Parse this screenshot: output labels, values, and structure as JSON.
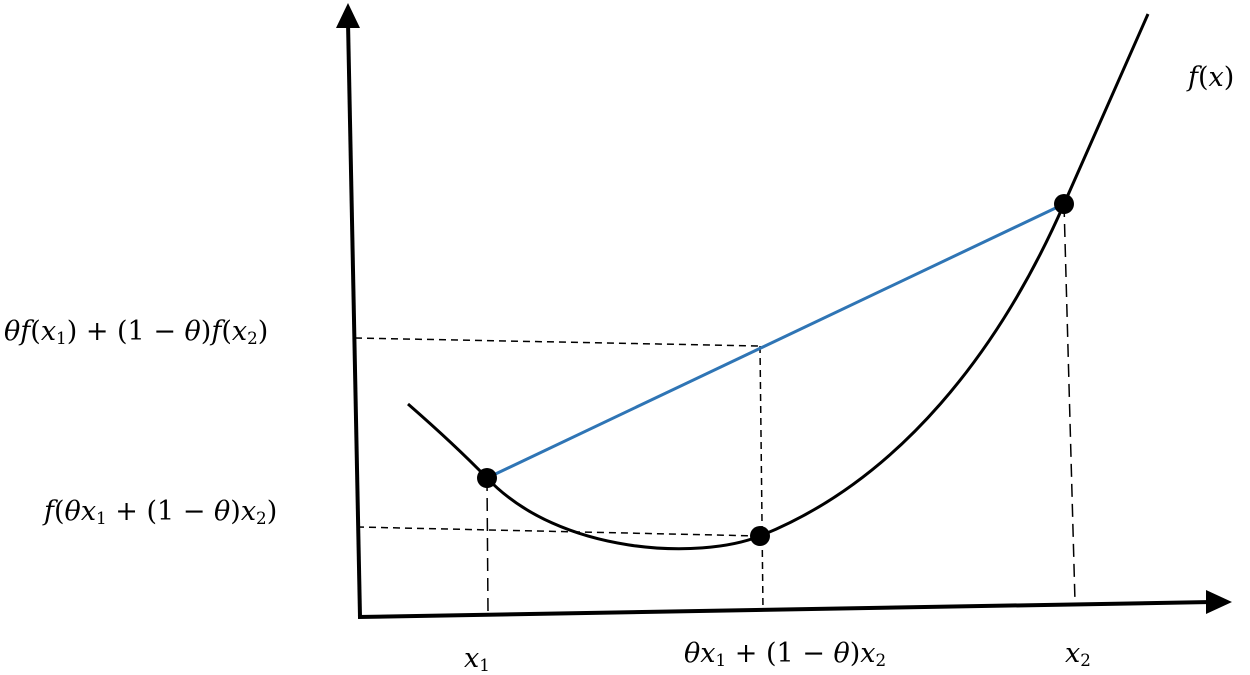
{
  "colors": {
    "curve": "#000000",
    "chord": "#2f75b5",
    "axes": "#000000",
    "guides": "#000000",
    "points": "#000000"
  },
  "labels": {
    "fx": {
      "f": "f",
      "open": "(",
      "x": "x",
      "close": ")"
    },
    "x1": {
      "x": "x",
      "sub": "1"
    },
    "x2": {
      "x": "x",
      "sub": "2"
    },
    "xmid": {
      "theta": "θ",
      "x": "x",
      "sub1": "1",
      "op1": " + (1 − ",
      "theta2": "θ",
      "op2": ")",
      "x2": "x",
      "sub2": "2"
    },
    "ychord": {
      "theta": "θ",
      "f1": "f",
      "p1": "(",
      "x1": "x",
      "s1": "1",
      "p2": ") + (1 − ",
      "theta2": "θ",
      "p3": ")",
      "f2": "f",
      "p4": "(",
      "x2": "x",
      "s2": "2",
      "p5": ")"
    },
    "ycurve": {
      "f": "f",
      "p1": "(",
      "theta": "θ",
      "x1": "x",
      "s1": "1",
      "p2": " + (1 − ",
      "theta2": "θ",
      "p3": ")",
      "x2": "x",
      "s2": "2",
      "p4": ")"
    }
  }
}
